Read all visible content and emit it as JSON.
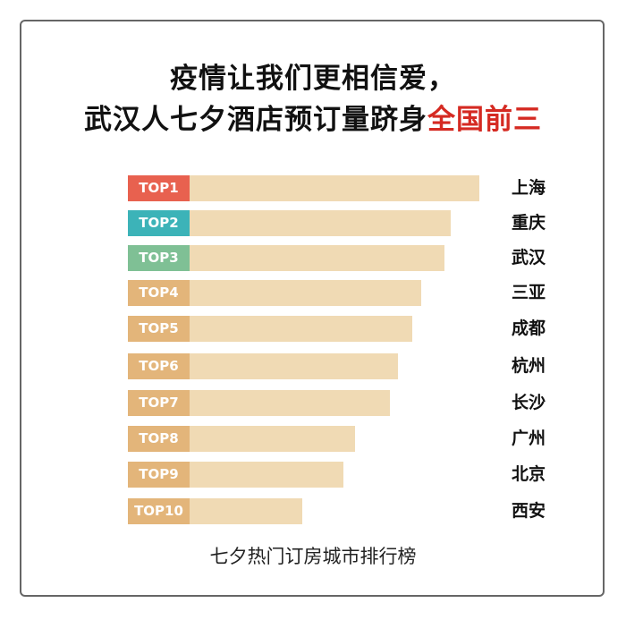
{
  "title_line1": "疫情让我们更相信爱，",
  "title_line2_prefix": "武汉人七夕酒店预订量跻身",
  "title_line2_highlight": "全国前三",
  "caption": "七夕热门订房城市排行榜",
  "colors": {
    "top1": "#e8614f",
    "top2": "#3cb3b8",
    "top3": "#7fc095",
    "other": "#e3b57a",
    "bar": "#f0dab4",
    "highlight": "#d52a22"
  },
  "chart_data": {
    "type": "bar",
    "orientation": "horizontal",
    "title": "",
    "categories": [
      "上海",
      "重庆",
      "武汉",
      "三亚",
      "成都",
      "杭州",
      "长沙",
      "广州",
      "北京",
      "西安"
    ],
    "ranks": [
      "TOP1",
      "TOP2",
      "TOP3",
      "TOP4",
      "TOP5",
      "TOP6",
      "TOP7",
      "TOP8",
      "TOP9",
      "TOP10"
    ],
    "values": [
      100,
      90,
      88,
      80,
      77,
      72,
      69,
      57,
      53,
      39
    ],
    "value_note_relative": true,
    "grid": false
  }
}
